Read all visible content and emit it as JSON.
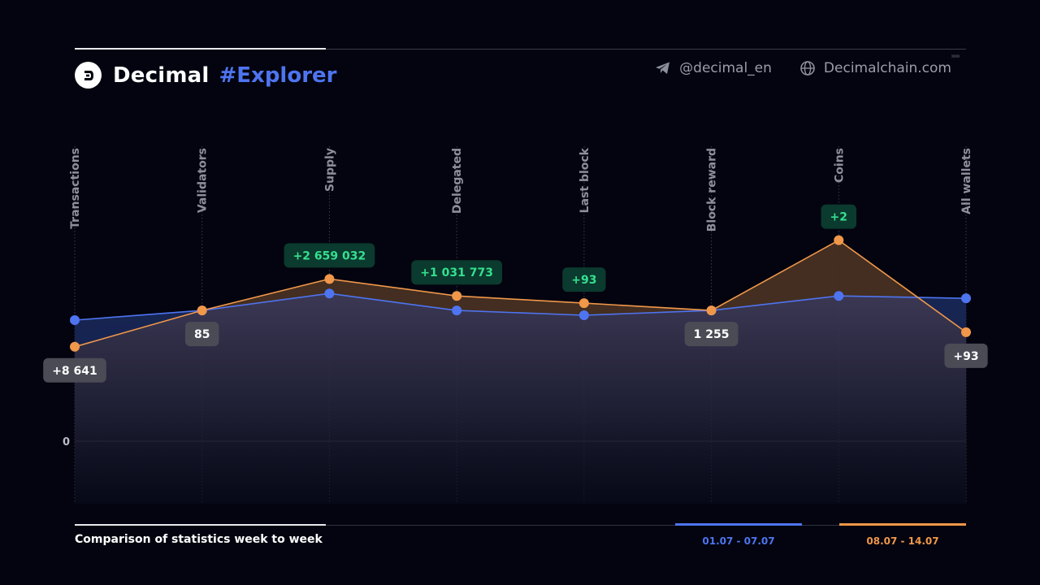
{
  "header": {
    "brand_name": "Decimal",
    "brand_tag": "#Explorer",
    "telegram_handle": "@decimal_en",
    "website": "Decimalchain.com"
  },
  "footer": {
    "title": "Comparison of statistics week to week"
  },
  "colors": {
    "background": "#03040f",
    "series_week1": "#4e74f0",
    "series_week2": "#f0974a",
    "badge_positive_bg": "#0b3a2e",
    "badge_positive_text": "#35e08f",
    "badge_neutral_bg": "#4a4b55"
  },
  "chart_data": {
    "type": "line",
    "title": "",
    "categories": [
      "Transactions",
      "Validators",
      "Supply",
      "Delegated",
      "Last block",
      "Block reward",
      "Coins",
      "All wallets"
    ],
    "zero_label": "0",
    "series": [
      {
        "name": "01.07 - 07.07",
        "color": "#4e74f0",
        "values": [
          0.5,
          0.54,
          0.61,
          0.54,
          0.52,
          0.54,
          0.6,
          0.59
        ]
      },
      {
        "name": "08.07 - 14.07",
        "color": "#f0974a",
        "values": [
          0.39,
          0.54,
          0.67,
          0.6,
          0.57,
          0.54,
          0.83,
          0.45
        ]
      }
    ],
    "annotations": [
      {
        "category": "Transactions",
        "text": "+8 641",
        "style": "neutral",
        "placement": "below"
      },
      {
        "category": "Validators",
        "text": "85",
        "style": "neutral",
        "placement": "below"
      },
      {
        "category": "Supply",
        "text": "+2 659 032",
        "style": "positive",
        "placement": "above"
      },
      {
        "category": "Delegated",
        "text": "+1 031 773",
        "style": "positive",
        "placement": "above"
      },
      {
        "category": "Last block",
        "text": "+93",
        "style": "positive",
        "placement": "above"
      },
      {
        "category": "Block reward",
        "text": "1 255",
        "style": "neutral",
        "placement": "below"
      },
      {
        "category": "Coins",
        "text": "+2",
        "style": "positive",
        "placement": "above"
      },
      {
        "category": "All wallets",
        "text": "+93",
        "style": "neutral",
        "placement": "below"
      }
    ],
    "grid": "vertical dotted lines per category",
    "legend_placement": "bottom-right"
  }
}
